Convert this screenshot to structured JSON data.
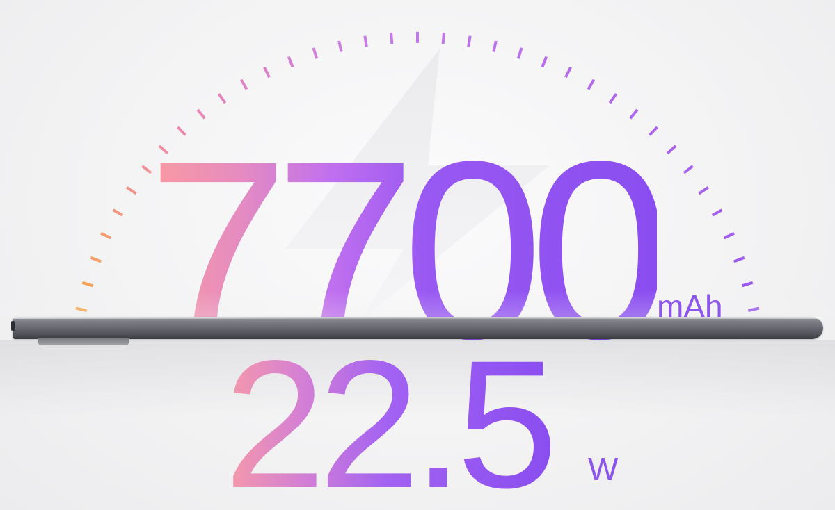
{
  "capacity": {
    "value": "7700",
    "unit": "mAh"
  },
  "charging": {
    "value": "22.5",
    "unit": "W"
  },
  "colors": {
    "gradient_start": "#fb9aa0",
    "gradient_mid": "#c070ee",
    "gradient_end": "#8a4ef0",
    "tick_orange": "#f5a64a",
    "tick_pink": "#f28ca8",
    "tick_violet": "#9a58f0",
    "tablet_body": "#6a6a72"
  },
  "icons": {
    "background": "lightning-bolt-icon",
    "dial": "gauge-ticks-icon"
  }
}
